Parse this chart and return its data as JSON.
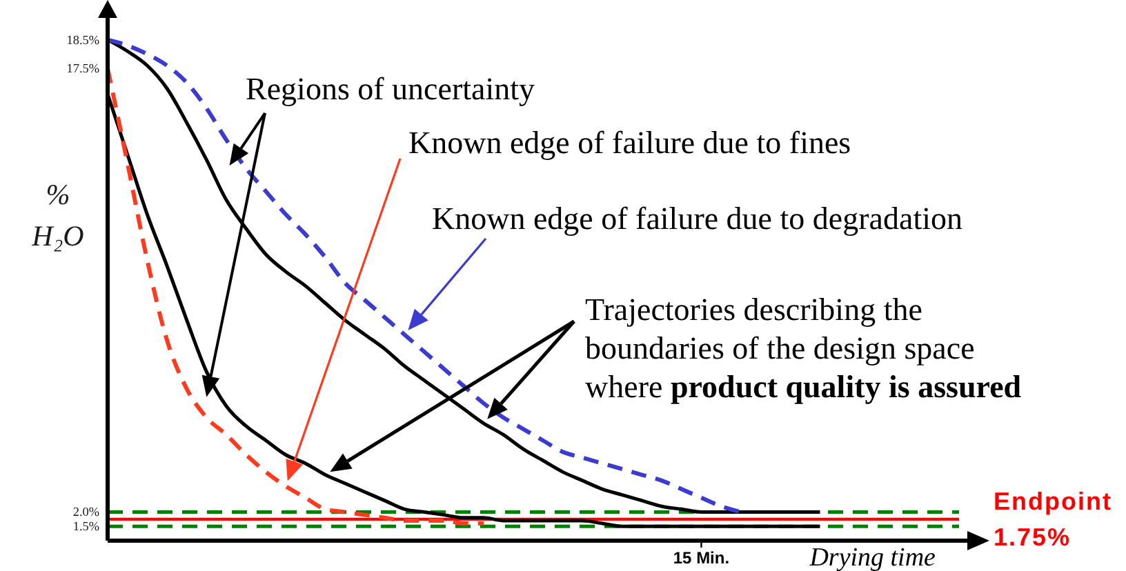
{
  "chart_data": {
    "type": "line",
    "xlabel": "Drying time",
    "ylabel": "% H₂O",
    "categories": [
      null,
      null,
      null,
      null,
      null,
      null,
      null,
      null,
      null,
      null,
      null,
      null,
      null,
      null,
      null,
      null,
      null,
      null,
      null,
      null,
      null,
      null,
      null,
      null,
      null,
      null,
      null,
      null,
      null,
      null,
      "15 Min.",
      null,
      null,
      null,
      null,
      null,
      null,
      null,
      null,
      null,
      null,
      null,
      null,
      null
    ],
    "ylim": [
      1.0,
      19.6
    ],
    "yticks": [
      {
        "value": 1.5,
        "label": "1.5%"
      },
      {
        "value": 2.0,
        "label": "2.0%"
      },
      {
        "value": 17.5,
        "label": "17.5%"
      },
      {
        "value": 18.5,
        "label": "18.5%"
      }
    ],
    "series": [
      {
        "color": "#000000",
        "line_style": "solid",
        "values": [
          18.5,
          18.1,
          17.6,
          16.8,
          15.6,
          14.3,
          12.9,
          11.9,
          11.0,
          10.4,
          9.9,
          9.3,
          8.7,
          8.2,
          7.7,
          7.1,
          6.6,
          6.1,
          5.6,
          5.1,
          4.7,
          4.2,
          3.8,
          3.4,
          3.1,
          2.8,
          2.6,
          2.4,
          2.2,
          2.1,
          2.0,
          2.0,
          2.0,
          2.0,
          2.0,
          2.0,
          2.0,
          null,
          null,
          null,
          null,
          null,
          null,
          null
        ]
      },
      {
        "color": "#000000",
        "line_style": "solid",
        "values": [
          16.6,
          14.5,
          12.4,
          10.6,
          8.7,
          6.9,
          5.7,
          5.0,
          4.5,
          4.0,
          3.7,
          3.3,
          3.0,
          2.7,
          2.4,
          2.1,
          2.0,
          1.9,
          1.8,
          1.8,
          1.7,
          1.7,
          1.7,
          1.7,
          1.7,
          1.6,
          1.5,
          1.5,
          1.5,
          1.5,
          1.5,
          1.5,
          1.5,
          1.5,
          1.5,
          1.5,
          1.5,
          null,
          null,
          null,
          null,
          null,
          null,
          null
        ]
      },
      {
        "color": "#3b3bcf",
        "line_style": "dashed",
        "values": [
          18.5,
          18.3,
          18.0,
          17.6,
          17.0,
          16.1,
          15.0,
          14.0,
          13.2,
          12.4,
          11.7,
          10.9,
          10.0,
          9.4,
          8.8,
          8.2,
          7.6,
          7.0,
          6.4,
          5.8,
          5.3,
          4.9,
          4.5,
          4.1,
          3.9,
          3.7,
          3.5,
          3.3,
          3.1,
          2.8,
          2.5,
          2.2,
          2.0,
          null,
          null,
          null,
          null,
          null,
          null,
          null,
          null,
          null,
          null,
          null
        ]
      },
      {
        "color": "#ff3b1f",
        "line_style": "dashed",
        "values": [
          17.5,
          14.2,
          10.8,
          8.0,
          6.3,
          5.3,
          4.7,
          4.0,
          3.4,
          2.9,
          2.5,
          2.1,
          2.0,
          1.9,
          1.8,
          1.7,
          1.7,
          1.7,
          1.6,
          1.6,
          null,
          null,
          null,
          null,
          null,
          null,
          null,
          null,
          null,
          null,
          null,
          null,
          null,
          null,
          null,
          null,
          null,
          null,
          null,
          null,
          null,
          null,
          null,
          null
        ]
      }
    ],
    "ref_lines": [
      {
        "axis": "y",
        "value": 2.0,
        "label": null,
        "color": "#008000",
        "line_style": "dashed"
      },
      {
        "axis": "y",
        "value": 1.5,
        "label": null,
        "color": "#008000",
        "line_style": "dashed"
      },
      {
        "axis": "y",
        "value": 1.75,
        "label": "Endpoint 1.75%",
        "color": "#ff0000",
        "line_style": "solid"
      }
    ],
    "annotations": [
      "Regions of uncertainty",
      "Known edge of failure due to fines",
      "Known edge of failure due to degradation",
      "Trajectories describing the boundaries of the design space where product quality is assured"
    ]
  }
}
